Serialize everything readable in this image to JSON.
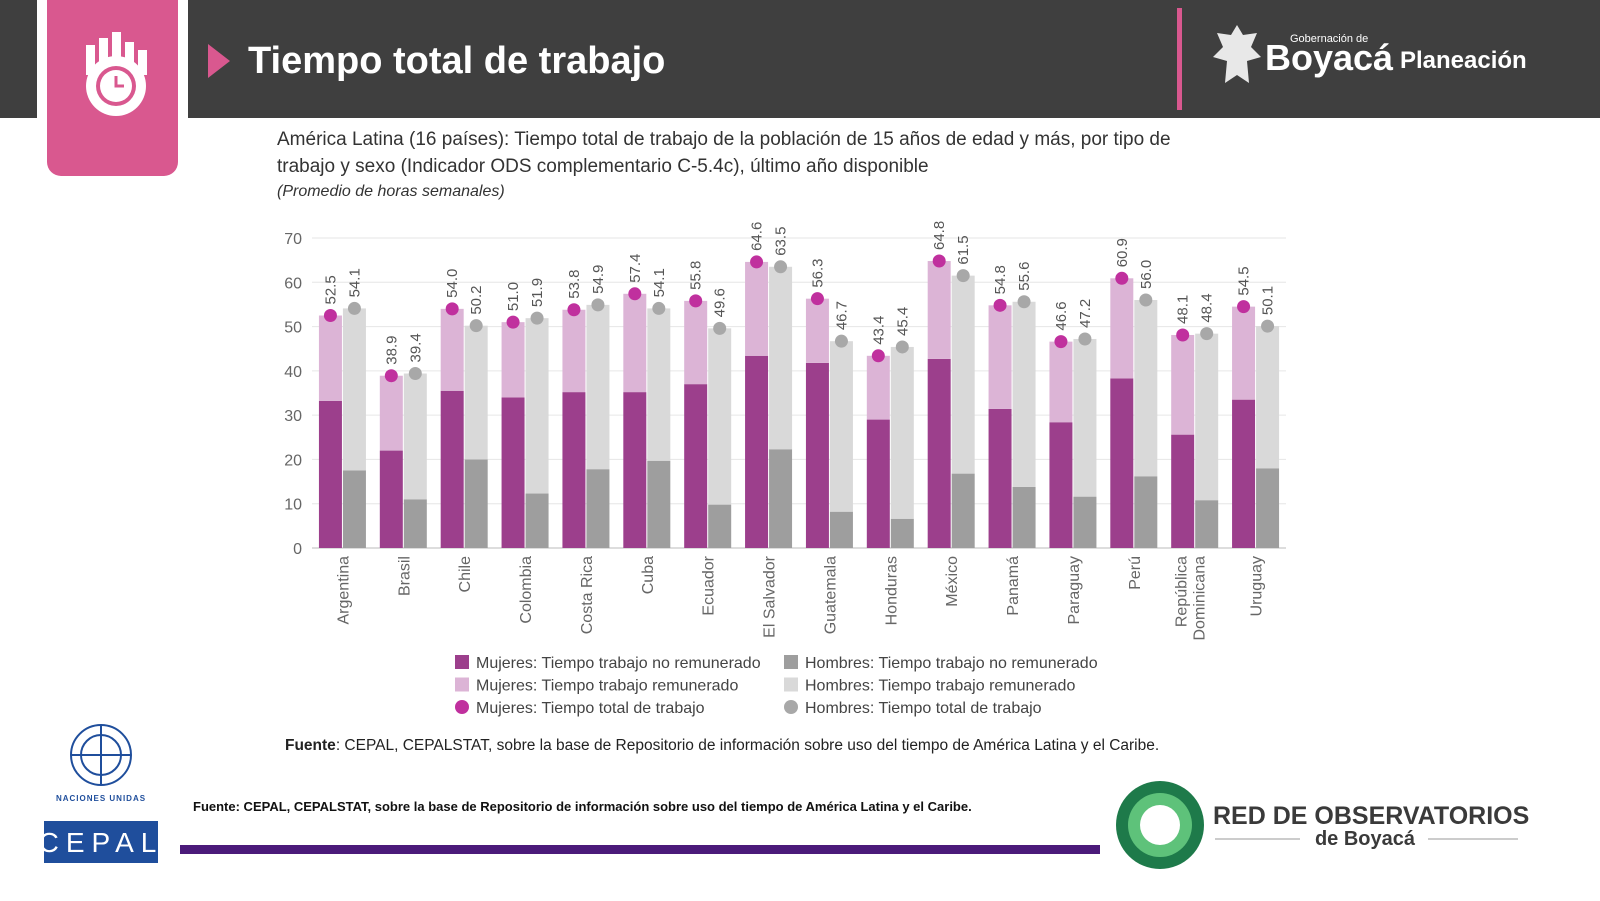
{
  "header": {
    "title": "Tiempo total de trabajo",
    "org_small": "Gobernación de",
    "org": "Boyacá",
    "unit": "Planeación"
  },
  "chart_data": {
    "type": "bar",
    "title": "América Latina (16 países): Tiempo total de trabajo de la población de 15 años de edad y más, por tipo de trabajo y sexo (Indicador ODS complementario C-5.4c), último año disponible",
    "subtitle": "(Promedio de horas semanales)",
    "categories": [
      "Argentina",
      "Brasil",
      "Chile",
      "Colombia",
      "Costa Rica",
      "Cuba",
      "Ecuador",
      "El Salvador",
      "Guatemala",
      "Honduras",
      "México",
      "Panamá",
      "Paraguay",
      "Perú",
      "República Dominicana",
      "Uruguay"
    ],
    "series": [
      {
        "name": "Mujeres: Tiempo trabajo no remunerado",
        "color": "#9c3f8c",
        "stack": "w",
        "values": [
          33.2,
          22.0,
          35.5,
          34.0,
          35.2,
          35.2,
          37.0,
          43.4,
          41.8,
          29.0,
          42.7,
          31.4,
          28.4,
          38.3,
          25.6,
          33.5
        ]
      },
      {
        "name": "Mujeres: Tiempo trabajo remunerado",
        "color": "#dcb4d6",
        "stack": "w",
        "values": [
          19.3,
          16.9,
          18.5,
          17.0,
          18.6,
          22.2,
          18.8,
          21.2,
          14.5,
          14.4,
          22.1,
          23.4,
          18.2,
          22.6,
          22.5,
          21.0
        ]
      },
      {
        "name": "Mujeres: Tiempo total de trabajo",
        "color": "#c0309e",
        "stack": "w",
        "marker": "dot",
        "values": [
          52.5,
          38.9,
          54.0,
          51.0,
          53.8,
          57.4,
          55.8,
          64.6,
          56.3,
          43.4,
          64.8,
          54.8,
          46.6,
          60.9,
          48.1,
          54.5
        ],
        "value_labels": [
          "52.5",
          "38.9",
          "54.0",
          "51.0",
          "53.8",
          "57.4",
          "55.8",
          "64.6",
          "56.3",
          "43.4",
          "64.8",
          "54.8",
          "46.6",
          "60.9",
          "48.1",
          "54.5"
        ]
      },
      {
        "name": "Hombres: Tiempo trabajo no remunerado",
        "color": "#9e9e9e",
        "stack": "m",
        "values": [
          17.5,
          11.0,
          20.0,
          12.3,
          17.8,
          19.7,
          9.8,
          22.3,
          8.2,
          6.6,
          16.8,
          13.8,
          11.6,
          16.2,
          10.8,
          18.0
        ]
      },
      {
        "name": "Hombres: Tiempo trabajo remunerado",
        "color": "#d9d9d9",
        "stack": "m",
        "values": [
          36.6,
          28.4,
          30.2,
          39.6,
          37.1,
          34.4,
          39.8,
          41.2,
          38.5,
          38.8,
          44.7,
          41.8,
          35.6,
          39.8,
          37.6,
          32.1
        ]
      },
      {
        "name": "Hombres: Tiempo total de trabajo",
        "color": "#a8a8a8",
        "stack": "m",
        "marker": "dot",
        "values": [
          54.1,
          39.4,
          50.2,
          51.9,
          54.9,
          54.1,
          49.6,
          63.5,
          46.7,
          45.4,
          61.5,
          55.6,
          47.2,
          56.0,
          48.4,
          50.1
        ],
        "value_labels": [
          "54.1",
          "39.4",
          "50.2",
          "51.9",
          "54.9",
          "54.1",
          "49.6",
          "63.5",
          "46.7",
          "45.4",
          "61.5",
          "55.6",
          "47.2",
          "56.0",
          "48.4",
          "50.1"
        ]
      }
    ],
    "ylim": [
      0,
      70
    ],
    "yticks": [
      0,
      10,
      20,
      30,
      40,
      50,
      60,
      70
    ],
    "grid": true,
    "source_label": "Fuente",
    "source_text": ": CEPAL, CEPALSTAT, sobre la base de Repositorio de información sobre uso del tiempo de América Latina y el Caribe."
  },
  "footer": {
    "source": "Fuente: CEPAL, CEPALSTAT, sobre la base de Repositorio de información sobre uso del tiempo de América Latina y el Caribe.",
    "un": "NACIONES UNIDAS",
    "cepal": "CEPAL",
    "network": "RED DE OBSERVATORIOS",
    "network_sub": "de Boyacá"
  }
}
